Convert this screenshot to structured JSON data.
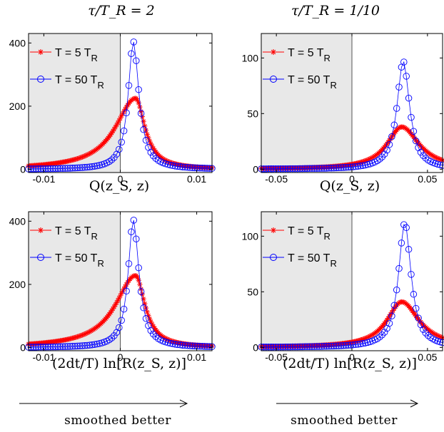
{
  "column_titles": [
    "τ/T_R = 2",
    "τ/T_R = 1/10"
  ],
  "row_xlabels": [
    "Q(z_S, z)",
    "(2dt/T) ln[R(z_S, z)]"
  ],
  "arrow_label": "smoothed better",
  "colors": {
    "series_5": "#ff0000",
    "series_50": "#0000ff",
    "shade": "#e8e8e8"
  },
  "chart_data": [
    {
      "type": "scatter",
      "panel": "top-left",
      "xlabel": "Q(z_S, z)",
      "xlim": [
        -0.012,
        0.012
      ],
      "ylim": [
        -10,
        430
      ],
      "xticks": [
        -0.01,
        0,
        0.01
      ],
      "xtick_labels": [
        "-0.01",
        "0",
        "0.01"
      ],
      "yticks": [
        0,
        200,
        400
      ],
      "ytick_labels": [
        "0",
        "200",
        "400"
      ],
      "shaded_x_range": [
        -0.012,
        0
      ],
      "legend": "top-left",
      "series": [
        {
          "name": "T = 5 T_R",
          "marker": "star",
          "color": "#ff0000",
          "peak_x": 0.002,
          "peak_y": 225,
          "width_left": 0.0032,
          "width_right": 0.0015
        },
        {
          "name": "T = 50 T_R",
          "marker": "circle",
          "color": "#0000ff",
          "peak_x": 0.0017,
          "peak_y": 405,
          "width_left": 0.0008,
          "width_right": 0.0009
        }
      ]
    },
    {
      "type": "scatter",
      "panel": "top-right",
      "xlabel": "Q(z_S, z)",
      "xlim": [
        -0.06,
        0.06
      ],
      "ylim": [
        -3,
        122
      ],
      "xticks": [
        -0.05,
        0,
        0.05
      ],
      "xtick_labels": [
        "-0.05",
        "0",
        "0.05"
      ],
      "yticks": [
        0,
        50,
        100
      ],
      "ytick_labels": [
        "0",
        "50",
        "100"
      ],
      "shaded_x_range": [
        -0.06,
        0
      ],
      "legend": "top-left",
      "series": [
        {
          "name": "T = 5 T_R",
          "marker": "star",
          "color": "#ff0000",
          "peak_x": 0.033,
          "peak_y": 38,
          "width_left": 0.012,
          "width_right": 0.014
        },
        {
          "name": "T = 50 T_R",
          "marker": "circle",
          "color": "#0000ff",
          "peak_x": 0.034,
          "peak_y": 97,
          "width_left": 0.005,
          "width_right": 0.005
        }
      ]
    },
    {
      "type": "scatter",
      "panel": "bottom-left",
      "xlabel": "(2dt/T) ln[R(z_S, z)]",
      "xlim": [
        -0.012,
        0.012
      ],
      "ylim": [
        -10,
        430
      ],
      "xticks": [
        -0.01,
        0,
        0.01
      ],
      "xtick_labels": [
        "-0.01",
        "0",
        "0.01"
      ],
      "yticks": [
        0,
        200,
        400
      ],
      "ytick_labels": [
        "0",
        "200",
        "400"
      ],
      "shaded_x_range": [
        -0.012,
        0
      ],
      "legend": "top-left",
      "series": [
        {
          "name": "T = 5 T_R",
          "marker": "star",
          "color": "#ff0000",
          "peak_x": 0.002,
          "peak_y": 228,
          "width_left": 0.0032,
          "width_right": 0.0015
        },
        {
          "name": "T = 50 T_R",
          "marker": "circle",
          "color": "#0000ff",
          "peak_x": 0.0017,
          "peak_y": 405,
          "width_left": 0.0008,
          "width_right": 0.0009
        }
      ]
    },
    {
      "type": "scatter",
      "panel": "bottom-right",
      "xlabel": "(2dt/T) ln[R(z_S, z)]",
      "xlim": [
        -0.06,
        0.06
      ],
      "ylim": [
        -3,
        122
      ],
      "xticks": [
        -0.05,
        0,
        0.05
      ],
      "xtick_labels": [
        "-0.05",
        "0",
        "0.05"
      ],
      "yticks": [
        0,
        50,
        100
      ],
      "ytick_labels": [
        "0",
        "50",
        "100"
      ],
      "shaded_x_range": [
        -0.06,
        0
      ],
      "legend": "top-left",
      "series": [
        {
          "name": "T = 5 T_R",
          "marker": "star",
          "color": "#ff0000",
          "peak_x": 0.033,
          "peak_y": 41,
          "width_left": 0.012,
          "width_right": 0.014
        },
        {
          "name": "T = 50 T_R",
          "marker": "circle",
          "color": "#0000ff",
          "peak_x": 0.035,
          "peak_y": 112,
          "width_left": 0.005,
          "width_right": 0.005
        }
      ]
    }
  ]
}
